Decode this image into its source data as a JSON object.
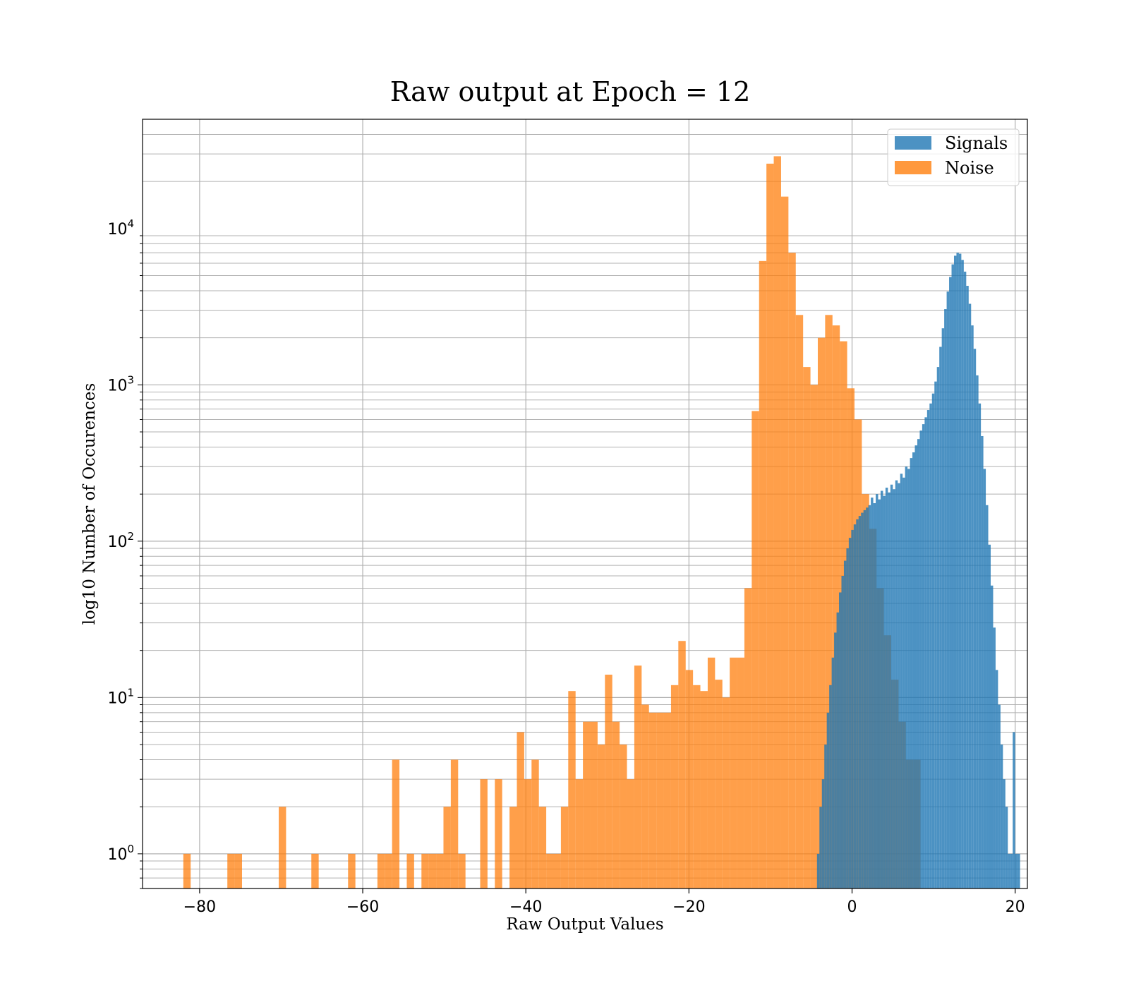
{
  "chart_data": {
    "type": "bar",
    "title": "Raw output at Epoch = 12",
    "xlabel": "Raw Output Values",
    "ylabel": "log10 Number of Occurences",
    "xlim": [
      -87,
      21.5
    ],
    "ylim": [
      0.6,
      50000
    ],
    "yscale": "log",
    "grid": true,
    "legend_position": "top-right",
    "x_ticks": [
      -80,
      -60,
      -40,
      -20,
      0,
      20
    ],
    "x_tick_labels": [
      "−80",
      "−60",
      "−40",
      "−20",
      "0",
      "20"
    ],
    "y_ticks": [
      1,
      10,
      100,
      1000,
      10000
    ],
    "y_tick_labels": [
      {
        "base": "10",
        "exp": "0"
      },
      {
        "base": "10",
        "exp": "1"
      },
      {
        "base": "10",
        "exp": "2"
      },
      {
        "base": "10",
        "exp": "3"
      },
      {
        "base": "10",
        "exp": "4"
      }
    ],
    "series": [
      {
        "name": "Noise",
        "color": "#ff7f0e",
        "opacity": 0.75,
        "bin_width": 0.9,
        "bins": [
          [
            -82.0,
            1
          ],
          [
            -76.6,
            1
          ],
          [
            -75.7,
            1
          ],
          [
            -70.3,
            2
          ],
          [
            -66.3,
            1
          ],
          [
            -61.8,
            1
          ],
          [
            -58.2,
            1
          ],
          [
            -57.3,
            1
          ],
          [
            -56.4,
            4
          ],
          [
            -54.6,
            1
          ],
          [
            -52.8,
            1
          ],
          [
            -51.9,
            1
          ],
          [
            -51.0,
            1
          ],
          [
            -50.1,
            2
          ],
          [
            -49.2,
            4
          ],
          [
            -48.3,
            1
          ],
          [
            -45.6,
            3
          ],
          [
            -43.8,
            3
          ],
          [
            -42.0,
            2
          ],
          [
            -41.1,
            6
          ],
          [
            -40.2,
            3
          ],
          [
            -39.3,
            4
          ],
          [
            -38.4,
            2
          ],
          [
            -37.5,
            1
          ],
          [
            -36.6,
            1
          ],
          [
            -35.7,
            2
          ],
          [
            -34.8,
            11
          ],
          [
            -33.9,
            3
          ],
          [
            -33.0,
            7
          ],
          [
            -32.1,
            7
          ],
          [
            -31.2,
            5
          ],
          [
            -30.3,
            14
          ],
          [
            -29.4,
            7
          ],
          [
            -28.5,
            5
          ],
          [
            -27.6,
            3
          ],
          [
            -26.7,
            16
          ],
          [
            -25.8,
            9
          ],
          [
            -24.9,
            8
          ],
          [
            -24.0,
            8
          ],
          [
            -23.1,
            8
          ],
          [
            -22.2,
            12
          ],
          [
            -21.3,
            23
          ],
          [
            -20.4,
            15
          ],
          [
            -19.5,
            12
          ],
          [
            -18.6,
            11
          ],
          [
            -17.7,
            18
          ],
          [
            -16.8,
            13
          ],
          [
            -15.9,
            10
          ],
          [
            -15.0,
            18
          ],
          [
            -14.1,
            18
          ],
          [
            -13.2,
            50
          ],
          [
            -12.3,
            680
          ],
          [
            -11.4,
            6200
          ],
          [
            -10.5,
            26000
          ],
          [
            -9.6,
            29000
          ],
          [
            -8.7,
            16000
          ],
          [
            -7.8,
            7000
          ],
          [
            -6.9,
            2800
          ],
          [
            -6.0,
            1300
          ],
          [
            -5.1,
            1000
          ],
          [
            -4.2,
            2000
          ],
          [
            -3.3,
            2800
          ],
          [
            -2.4,
            2400
          ],
          [
            -1.5,
            1900
          ],
          [
            -0.6,
            950
          ],
          [
            0.3,
            600
          ],
          [
            1.2,
            200
          ],
          [
            2.1,
            120
          ],
          [
            3.0,
            50
          ],
          [
            3.9,
            25
          ],
          [
            4.8,
            13
          ],
          [
            5.7,
            7
          ],
          [
            6.6,
            4
          ],
          [
            7.5,
            4
          ]
        ]
      },
      {
        "name": "Signals",
        "color": "#1f77b4",
        "opacity": 0.8,
        "bin_width": 0.3,
        "bins": [
          [
            -4.3,
            1
          ],
          [
            -4.0,
            2
          ],
          [
            -3.7,
            3
          ],
          [
            -3.4,
            5
          ],
          [
            -3.1,
            8
          ],
          [
            -2.8,
            12
          ],
          [
            -2.5,
            18
          ],
          [
            -2.2,
            26
          ],
          [
            -1.9,
            35
          ],
          [
            -1.6,
            47
          ],
          [
            -1.3,
            60
          ],
          [
            -1.0,
            75
          ],
          [
            -0.7,
            90
          ],
          [
            -0.4,
            105
          ],
          [
            -0.1,
            118
          ],
          [
            0.2,
            128
          ],
          [
            0.5,
            138
          ],
          [
            0.8,
            145
          ],
          [
            1.1,
            152
          ],
          [
            1.4,
            158
          ],
          [
            1.7,
            164
          ],
          [
            2.0,
            170
          ],
          [
            2.3,
            190
          ],
          [
            2.6,
            175
          ],
          [
            2.9,
            200
          ],
          [
            3.2,
            185
          ],
          [
            3.5,
            210
          ],
          [
            3.8,
            195
          ],
          [
            4.1,
            220
          ],
          [
            4.4,
            205
          ],
          [
            4.7,
            230
          ],
          [
            5.0,
            215
          ],
          [
            5.3,
            245
          ],
          [
            5.6,
            235
          ],
          [
            5.9,
            270
          ],
          [
            6.2,
            255
          ],
          [
            6.5,
            300
          ],
          [
            6.8,
            290
          ],
          [
            7.1,
            340
          ],
          [
            7.4,
            370
          ],
          [
            7.7,
            410
          ],
          [
            8.0,
            450
          ],
          [
            8.3,
            510
          ],
          [
            8.6,
            560
          ],
          [
            8.9,
            620
          ],
          [
            9.2,
            690
          ],
          [
            9.5,
            760
          ],
          [
            9.8,
            880
          ],
          [
            10.1,
            1050
          ],
          [
            10.4,
            1300
          ],
          [
            10.7,
            1750
          ],
          [
            11.0,
            2300
          ],
          [
            11.3,
            3050
          ],
          [
            11.6,
            3950
          ],
          [
            11.9,
            4900
          ],
          [
            12.2,
            5900
          ],
          [
            12.5,
            6700
          ],
          [
            12.8,
            7000
          ],
          [
            13.1,
            6900
          ],
          [
            13.4,
            6300
          ],
          [
            13.7,
            5300
          ],
          [
            14.0,
            4300
          ],
          [
            14.3,
            3300
          ],
          [
            14.6,
            2400
          ],
          [
            14.9,
            1700
          ],
          [
            15.2,
            1150
          ],
          [
            15.5,
            760
          ],
          [
            15.8,
            470
          ],
          [
            16.1,
            290
          ],
          [
            16.4,
            170
          ],
          [
            16.7,
            95
          ],
          [
            17.0,
            52
          ],
          [
            17.3,
            28
          ],
          [
            17.6,
            15
          ],
          [
            17.9,
            9
          ],
          [
            18.2,
            5
          ],
          [
            18.5,
            3
          ],
          [
            18.8,
            2
          ],
          [
            19.1,
            1
          ],
          [
            19.4,
            1
          ],
          [
            19.7,
            6
          ],
          [
            20.0,
            1
          ],
          [
            20.3,
            1
          ]
        ]
      }
    ],
    "legend": [
      {
        "name": "Signals",
        "color": "#1f77b4"
      },
      {
        "name": "Noise",
        "color": "#ff7f0e"
      }
    ]
  }
}
